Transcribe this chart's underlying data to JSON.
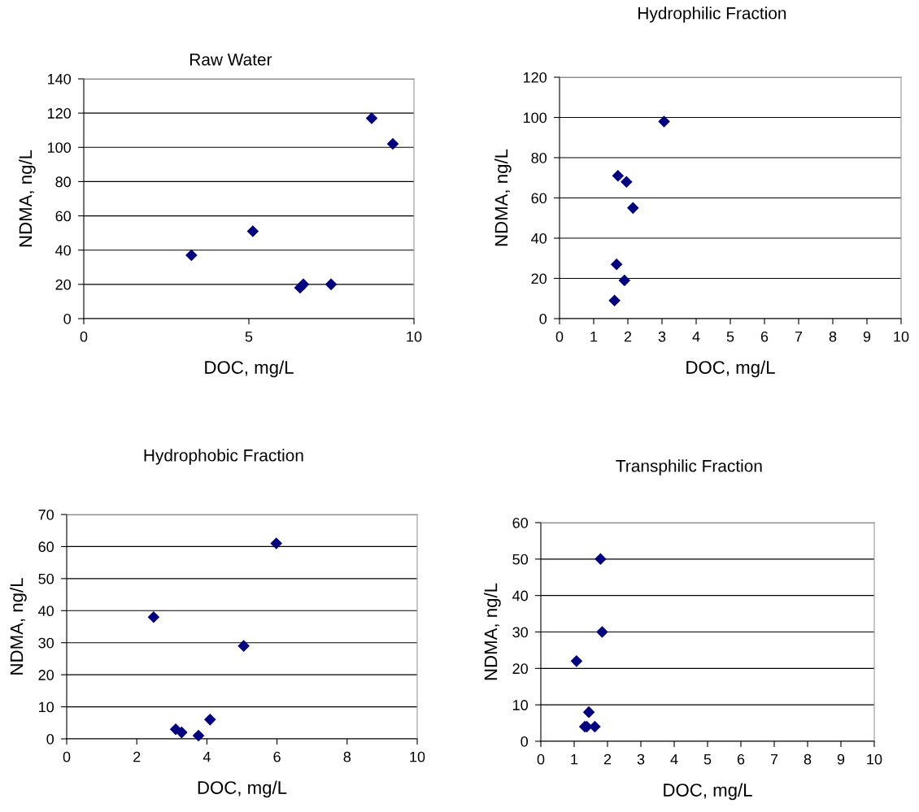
{
  "chart_data": [
    {
      "type": "scatter",
      "title": "Raw Water",
      "xlabel": "DOC, mg/L",
      "ylabel": "NDMA, ng/L",
      "xlim": [
        0,
        10
      ],
      "xticks": [
        0,
        5,
        10
      ],
      "ylim": [
        0,
        140
      ],
      "yticks": [
        0,
        20,
        40,
        60,
        80,
        100,
        120,
        140
      ],
      "grid": "y",
      "marker": "diamond",
      "series": [
        {
          "color": "#000080",
          "x": [
            3.26,
            5.12,
            6.55,
            6.65,
            7.49,
            8.72,
            9.36
          ],
          "values": [
            37,
            51,
            18,
            20,
            20,
            117,
            102
          ]
        }
      ]
    },
    {
      "type": "scatter",
      "title": "Hydrophilic Fraction",
      "xlabel": "DOC, mg/L",
      "ylabel": "NDMA, ng/L",
      "xlim": [
        0,
        10
      ],
      "xticks": [
        0,
        1,
        2,
        3,
        4,
        5,
        6,
        7,
        8,
        9,
        10
      ],
      "ylim": [
        0,
        120
      ],
      "yticks": [
        0,
        20,
        40,
        60,
        80,
        100,
        120
      ],
      "grid": "y",
      "marker": "diamond",
      "series": [
        {
          "color": "#000080",
          "x": [
            3.06,
            1.71,
            1.96,
            2.15,
            1.67,
            1.9,
            1.61
          ],
          "values": [
            98,
            71,
            68,
            55,
            27,
            19,
            9
          ]
        }
      ]
    },
    {
      "type": "scatter",
      "title": "Hydrophobic Fraction",
      "xlabel": "DOC, mg/L",
      "ylabel": "NDMA, ng/L",
      "xlim": [
        0,
        10
      ],
      "xticks": [
        0,
        2,
        4,
        6,
        8,
        10
      ],
      "ylim": [
        0,
        70
      ],
      "yticks": [
        0,
        10,
        20,
        30,
        40,
        50,
        60,
        70
      ],
      "grid": "y",
      "marker": "diamond",
      "series": [
        {
          "color": "#000080",
          "x": [
            2.48,
            3.11,
            3.28,
            3.76,
            4.09,
            5.05,
            5.98
          ],
          "values": [
            38,
            3,
            2,
            1,
            6,
            29,
            61
          ]
        }
      ]
    },
    {
      "type": "scatter",
      "title": "Transphilic Fraction",
      "xlabel": "DOC, mg/L",
      "ylabel": "NDMA, ng/L",
      "xlim": [
        0,
        10
      ],
      "xticks": [
        0,
        1,
        2,
        3,
        4,
        5,
        6,
        7,
        8,
        9,
        10
      ],
      "ylim": [
        0,
        60
      ],
      "yticks": [
        0,
        10,
        20,
        30,
        40,
        50,
        60
      ],
      "grid": "y",
      "marker": "diamond",
      "series": [
        {
          "color": "#000080",
          "x": [
            1.07,
            1.79,
            1.84,
            1.44,
            1.32,
            1.38,
            1.62
          ],
          "values": [
            22,
            50,
            30,
            8,
            4,
            4,
            4
          ]
        }
      ]
    }
  ]
}
